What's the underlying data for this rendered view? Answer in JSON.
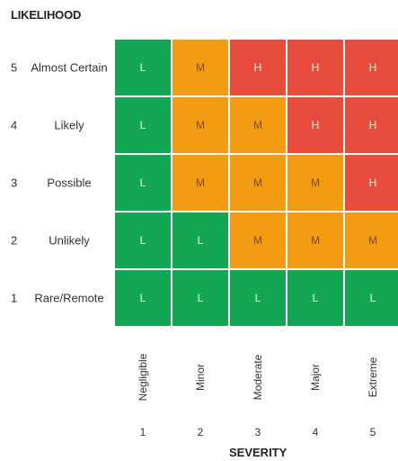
{
  "axis_y_title": "LIKELIHOOD",
  "axis_x_title": "SEVERITY",
  "rows": [
    {
      "num": "5",
      "label": "Almost Certain",
      "cells": [
        "L",
        "M",
        "H",
        "H",
        "H"
      ]
    },
    {
      "num": "4",
      "label": "Likely",
      "cells": [
        "L",
        "M",
        "M",
        "H",
        "H"
      ]
    },
    {
      "num": "3",
      "label": "Possible",
      "cells": [
        "L",
        "M",
        "M",
        "M",
        "H"
      ]
    },
    {
      "num": "2",
      "label": "Unlikely",
      "cells": [
        "L",
        "L",
        "M",
        "M",
        "M"
      ]
    },
    {
      "num": "1",
      "label": "Rare/Remote",
      "cells": [
        "L",
        "L",
        "L",
        "L",
        "L"
      ]
    }
  ],
  "columns": [
    {
      "num": "1",
      "label": "Negligible"
    },
    {
      "num": "2",
      "label": "Minor"
    },
    {
      "num": "3",
      "label": "Moderate"
    },
    {
      "num": "4",
      "label": "Major"
    },
    {
      "num": "5",
      "label": "Extreme"
    }
  ],
  "colors": {
    "L": "#12a653",
    "M": "#f39c12",
    "H": "#e74c3c"
  }
}
